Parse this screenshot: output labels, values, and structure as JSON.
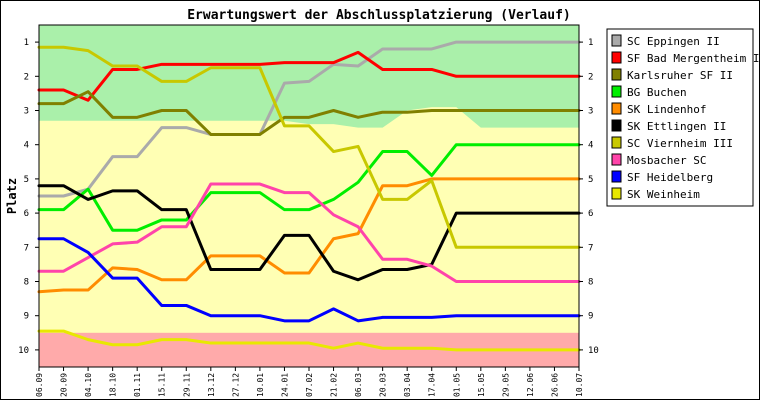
{
  "chart_data": {
    "type": "line",
    "title": "Erwartungswert der Abschlussplatzierung (Verlauf)",
    "xlabel": "",
    "ylabel": "Platz",
    "ylim": [
      0.5,
      10.5
    ],
    "y_inverted": true,
    "yticks": [
      1,
      2,
      3,
      4,
      5,
      6,
      7,
      8,
      9,
      10
    ],
    "grid": false,
    "legend_position": "right",
    "categories": [
      "06.09",
      "20.09",
      "04.10",
      "18.10",
      "01.11",
      "15.11",
      "29.11",
      "13.12",
      "27.12",
      "10.01",
      "24.01",
      "07.02",
      "21.02",
      "06.03",
      "20.03",
      "03.04",
      "17.04",
      "01.05",
      "15.05",
      "29.05",
      "12.06",
      "26.06",
      "10.07"
    ],
    "zones": [
      {
        "color": "#aaf0aa",
        "top": [
          3.3,
          3.3,
          3.3,
          3.3,
          3.3,
          3.3,
          3.3,
          3.3,
          3.3,
          3.3,
          3.3,
          3.4,
          3.4,
          3.5,
          3.5,
          3.0,
          2.9,
          2.9,
          3.5,
          3.5,
          3.5,
          3.5,
          3.5
        ]
      },
      {
        "color": "#ffffb4"
      },
      {
        "color": "#ffaaaa",
        "from": 9.5
      }
    ],
    "series": [
      {
        "name": "SC Eppingen II",
        "color": "#aaaaaa",
        "values": [
          5.5,
          5.5,
          5.3,
          4.35,
          4.35,
          3.5,
          3.5,
          3.7,
          3.7,
          3.7,
          2.2,
          2.15,
          1.65,
          1.7,
          1.2,
          1.2,
          1.2,
          1.0,
          1.0,
          1.0,
          1.0,
          1.0,
          1.0
        ]
      },
      {
        "name": "SF Bad Mergentheim II",
        "color": "#ff0000",
        "values": [
          2.4,
          2.4,
          2.7,
          1.8,
          1.8,
          1.65,
          1.65,
          1.65,
          1.65,
          1.65,
          1.6,
          1.6,
          1.6,
          1.3,
          1.8,
          1.8,
          1.8,
          2.0,
          2.0,
          2.0,
          2.0,
          2.0,
          2.0
        ]
      },
      {
        "name": "Karlsruher SF II",
        "color": "#808000",
        "values": [
          2.8,
          2.8,
          2.45,
          3.2,
          3.2,
          3.0,
          3.0,
          3.7,
          3.7,
          3.7,
          3.2,
          3.2,
          3.0,
          3.2,
          3.05,
          3.05,
          3.0,
          3.0,
          3.0,
          3.0,
          3.0,
          3.0,
          3.0
        ]
      },
      {
        "name": "BG Buchen",
        "color": "#00ee00",
        "values": [
          5.9,
          5.9,
          5.3,
          6.5,
          6.5,
          6.2,
          6.2,
          5.4,
          5.4,
          5.4,
          5.9,
          5.9,
          5.6,
          5.1,
          4.2,
          4.2,
          4.9,
          4.0,
          4.0,
          4.0,
          4.0,
          4.0,
          4.0
        ]
      },
      {
        "name": "SK Lindenhof",
        "color": "#ff8c00",
        "values": [
          8.3,
          8.25,
          8.25,
          7.6,
          7.65,
          7.95,
          7.95,
          7.25,
          7.25,
          7.25,
          7.75,
          7.75,
          6.75,
          6.6,
          5.2,
          5.2,
          5.0,
          5.0,
          5.0,
          5.0,
          5.0,
          5.0,
          5.0
        ]
      },
      {
        "name": "SK Ettlingen II",
        "color": "#000000",
        "values": [
          5.2,
          5.2,
          5.6,
          5.35,
          5.35,
          5.9,
          5.9,
          7.65,
          7.65,
          7.65,
          6.65,
          6.65,
          7.7,
          7.95,
          7.65,
          7.65,
          7.5,
          6.0,
          6.0,
          6.0,
          6.0,
          6.0,
          6.0
        ]
      },
      {
        "name": "SC Viernheim III",
        "color": "#c8c800",
        "values": [
          1.15,
          1.15,
          1.25,
          1.7,
          1.7,
          2.15,
          2.15,
          1.75,
          1.75,
          1.75,
          3.45,
          3.45,
          4.2,
          4.05,
          5.6,
          5.6,
          5.05,
          7.0,
          7.0,
          7.0,
          7.0,
          7.0,
          7.0
        ]
      },
      {
        "name": "Mosbacher SC",
        "color": "#ff44aa",
        "values": [
          7.7,
          7.7,
          7.3,
          6.9,
          6.85,
          6.4,
          6.4,
          5.15,
          5.15,
          5.15,
          5.4,
          5.4,
          6.05,
          6.4,
          7.35,
          7.35,
          7.55,
          8.0,
          8.0,
          8.0,
          8.0,
          8.0,
          8.0
        ]
      },
      {
        "name": "SF Heidelberg",
        "color": "#0000ff",
        "values": [
          6.75,
          6.75,
          7.15,
          7.9,
          7.9,
          8.7,
          8.7,
          9.0,
          9.0,
          9.0,
          9.15,
          9.15,
          8.8,
          9.15,
          9.05,
          9.05,
          9.05,
          9.0,
          9.0,
          9.0,
          9.0,
          9.0,
          9.0
        ]
      },
      {
        "name": "SK Weinheim",
        "color": "#e8e800",
        "values": [
          9.45,
          9.45,
          9.7,
          9.85,
          9.85,
          9.7,
          9.7,
          9.8,
          9.8,
          9.8,
          9.8,
          9.8,
          9.95,
          9.8,
          9.95,
          9.95,
          9.95,
          10.0,
          10.0,
          10.0,
          10.0,
          10.0,
          10.0
        ]
      }
    ]
  }
}
